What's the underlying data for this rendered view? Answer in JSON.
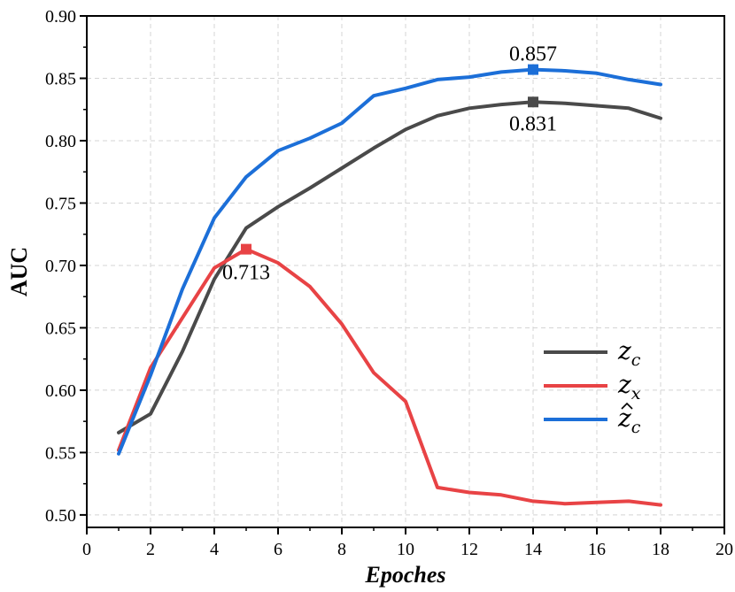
{
  "chart_data": {
    "type": "line",
    "xlabel": "Epoches",
    "ylabel": "AUC",
    "xlim": [
      0,
      20
    ],
    "ylim": [
      0.49,
      0.9
    ],
    "xticks": [
      0,
      2,
      4,
      6,
      8,
      10,
      12,
      14,
      16,
      18,
      20
    ],
    "yticks": [
      0.5,
      0.55,
      0.6,
      0.65,
      0.7,
      0.75,
      0.8,
      0.85,
      0.9
    ],
    "grid": true,
    "legend_position": "bottom-right",
    "x": [
      1,
      2,
      3,
      4,
      5,
      6,
      7,
      8,
      9,
      10,
      11,
      12,
      13,
      14,
      15,
      16,
      17,
      18
    ],
    "series": [
      {
        "name": "z_c",
        "legend_base": "z",
        "legend_sub": "c",
        "legend_hat": false,
        "color": "#4a4a4a",
        "values": [
          0.566,
          0.581,
          0.631,
          0.689,
          0.73,
          0.747,
          0.762,
          0.778,
          0.794,
          0.809,
          0.82,
          0.826,
          0.829,
          0.831,
          0.83,
          0.828,
          0.826,
          0.818
        ],
        "peak": {
          "x": 14,
          "y": 0.831,
          "label": "0.831"
        }
      },
      {
        "name": "z_x",
        "legend_base": "z",
        "legend_sub": "x",
        "legend_hat": false,
        "color": "#e84345",
        "values": [
          0.552,
          0.618,
          0.658,
          0.698,
          0.713,
          0.702,
          0.683,
          0.653,
          0.614,
          0.591,
          0.522,
          0.518,
          0.516,
          0.511,
          0.509,
          0.51,
          0.511,
          0.508
        ],
        "peak": {
          "x": 5,
          "y": 0.713,
          "label": "0.713"
        }
      },
      {
        "name": "ẑ_c",
        "legend_base": "z",
        "legend_sub": "c",
        "legend_hat": true,
        "color": "#1c6fd8",
        "values": [
          0.549,
          0.612,
          0.681,
          0.738,
          0.771,
          0.792,
          0.802,
          0.814,
          0.836,
          0.842,
          0.849,
          0.851,
          0.855,
          0.857,
          0.856,
          0.854,
          0.849,
          0.845
        ],
        "peak": {
          "x": 14,
          "y": 0.857,
          "label": "0.857"
        }
      }
    ]
  }
}
